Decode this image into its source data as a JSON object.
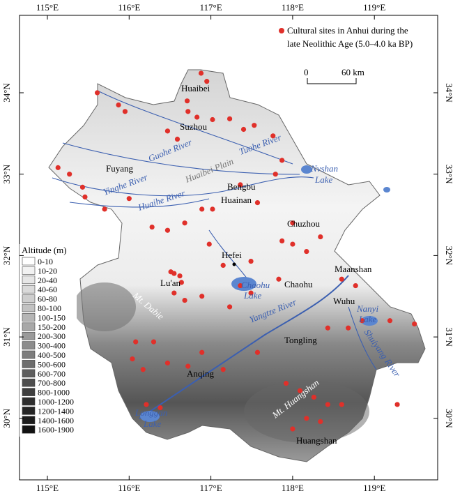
{
  "map": {
    "legend_sites": [
      "Cultural sites in Anhui during the",
      "late Neolithic Age (5.0–4.0 ka BP)"
    ],
    "scale": {
      "start": "0",
      "end": "60 km"
    },
    "lon_ticks": [
      {
        "value": 115,
        "label": "115°E"
      },
      {
        "value": 116,
        "label": "116°E"
      },
      {
        "value": 117,
        "label": "117°E"
      },
      {
        "value": 118,
        "label": "118°E"
      },
      {
        "value": 119,
        "label": "119°E"
      }
    ],
    "lat_ticks": [
      {
        "value": 34,
        "label": "34°N"
      },
      {
        "value": 33,
        "label": "33°N"
      },
      {
        "value": 32,
        "label": "32°N"
      },
      {
        "value": 31,
        "label": "31°N"
      },
      {
        "value": 30,
        "label": "30°N"
      }
    ],
    "site_color": "#e0302a",
    "altitude": {
      "title": "Altitude (m)",
      "classes": [
        {
          "label": "0-10",
          "color": "#ffffff"
        },
        {
          "label": "10-20",
          "color": "#f2f2f2"
        },
        {
          "label": "20-40",
          "color": "#e6e6e6"
        },
        {
          "label": "40-60",
          "color": "#dadada"
        },
        {
          "label": "60-80",
          "color": "#cecece"
        },
        {
          "label": "80-100",
          "color": "#c2c2c2"
        },
        {
          "label": "100-150",
          "color": "#b5b5b5"
        },
        {
          "label": "150-200",
          "color": "#a8a8a8"
        },
        {
          "label": "200-300",
          "color": "#9a9a9a"
        },
        {
          "label": "300-400",
          "color": "#8c8c8c"
        },
        {
          "label": "400-500",
          "color": "#7d7d7d"
        },
        {
          "label": "500-600",
          "color": "#6e6e6e"
        },
        {
          "label": "600-700",
          "color": "#5e5e5e"
        },
        {
          "label": "700-800",
          "color": "#4e4e4e"
        },
        {
          "label": "800-1000",
          "color": "#3e3e3e"
        },
        {
          "label": "1000-1200",
          "color": "#2e2e2e"
        },
        {
          "label": "1200-1400",
          "color": "#252525"
        },
        {
          "label": "1400-1600",
          "color": "#1c1c1c"
        },
        {
          "label": "1600-1900",
          "color": "#121212"
        }
      ]
    },
    "cities": [
      "Huaibei",
      "Suzhou",
      "Fuyang",
      "Bengbu",
      "Huainan",
      "Chuzhou",
      "Hefei",
      "Maanshan",
      "Chaohu",
      "Lu'an",
      "Wuhu",
      "Tongling",
      "Anqing",
      "Huangshan"
    ],
    "water": [
      "Guohe River",
      "Tuohe River",
      "Huaibei Plain",
      "Yinghe River",
      "Huaihe River",
      "Nvshan",
      "Lake",
      "Chaohu",
      "Lake",
      "Yangtze River",
      "Nanyi",
      "Lake",
      "Shuiyang River",
      "Longgan",
      "Lake"
    ],
    "mountains": [
      "Mt. Dabie",
      "Mt. Huangshan"
    ],
    "sites": [
      [
        116.88,
        34.24
      ],
      [
        116.95,
        34.14
      ],
      [
        116.71,
        33.9
      ],
      [
        116.72,
        33.77
      ],
      [
        116.83,
        33.7
      ],
      [
        117.02,
        33.67
      ],
      [
        117.23,
        33.68
      ],
      [
        116.47,
        33.53
      ],
      [
        116.59,
        33.43
      ],
      [
        117.4,
        33.55
      ],
      [
        117.53,
        33.6
      ],
      [
        117.76,
        33.47
      ],
      [
        117.87,
        33.17
      ],
      [
        115.61,
        34.0
      ],
      [
        115.87,
        33.85
      ],
      [
        115.95,
        33.77
      ],
      [
        115.13,
        33.08
      ],
      [
        115.27,
        33.0
      ],
      [
        115.43,
        32.84
      ],
      [
        115.46,
        32.72
      ],
      [
        115.7,
        32.57
      ],
      [
        116.0,
        32.7
      ],
      [
        116.28,
        32.35
      ],
      [
        116.47,
        32.31
      ],
      [
        116.68,
        32.4
      ],
      [
        116.89,
        32.57
      ],
      [
        117.02,
        32.57
      ],
      [
        117.36,
        32.87
      ],
      [
        117.57,
        32.65
      ],
      [
        117.79,
        33.0
      ],
      [
        118.0,
        32.4
      ],
      [
        117.87,
        32.18
      ],
      [
        118.0,
        32.14
      ],
      [
        118.17,
        32.05
      ],
      [
        118.34,
        32.23
      ],
      [
        116.98,
        32.14
      ],
      [
        117.15,
        31.88
      ],
      [
        117.49,
        31.93
      ],
      [
        116.51,
        31.8
      ],
      [
        116.55,
        31.78
      ],
      [
        116.62,
        31.75
      ],
      [
        116.64,
        31.67
      ],
      [
        116.55,
        31.54
      ],
      [
        116.68,
        31.45
      ],
      [
        116.89,
        31.5
      ],
      [
        117.23,
        31.37
      ],
      [
        117.36,
        31.63
      ],
      [
        117.49,
        31.54
      ],
      [
        117.83,
        31.71
      ],
      [
        118.6,
        31.71
      ],
      [
        118.77,
        31.63
      ],
      [
        118.43,
        31.11
      ],
      [
        118.68,
        31.11
      ],
      [
        118.85,
        31.2
      ],
      [
        119.19,
        31.2
      ],
      [
        119.49,
        31.16
      ],
      [
        116.08,
        30.94
      ],
      [
        116.3,
        30.94
      ],
      [
        116.04,
        30.73
      ],
      [
        116.17,
        30.6
      ],
      [
        116.47,
        30.68
      ],
      [
        116.72,
        30.64
      ],
      [
        116.89,
        30.81
      ],
      [
        117.15,
        30.6
      ],
      [
        117.57,
        30.81
      ],
      [
        117.92,
        30.43
      ],
      [
        118.09,
        30.34
      ],
      [
        118.26,
        30.26
      ],
      [
        118.43,
        30.17
      ],
      [
        118.6,
        30.17
      ],
      [
        118.17,
        30.0
      ],
      [
        118.0,
        29.87
      ],
      [
        118.34,
        29.96
      ],
      [
        116.21,
        30.17
      ],
      [
        116.38,
        30.13
      ],
      [
        119.28,
        30.17
      ]
    ]
  }
}
